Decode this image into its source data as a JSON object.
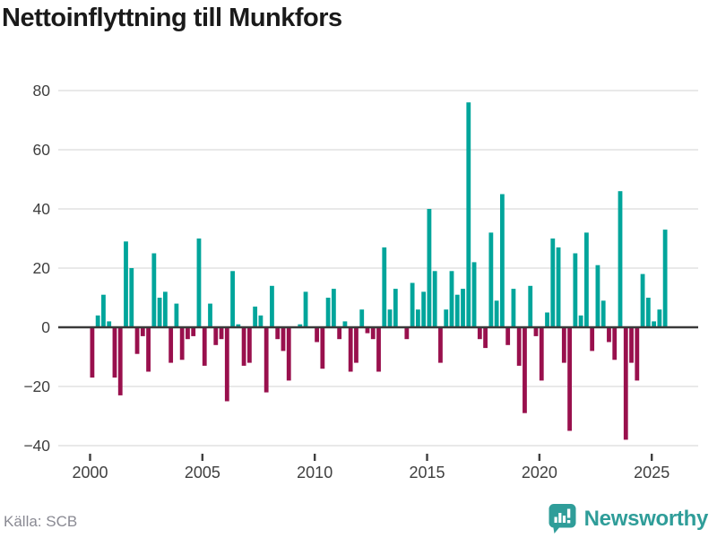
{
  "title": "Nettoinflyttning till Munkfors",
  "source": "Källa: SCB",
  "brand": {
    "name": "Newsworthy"
  },
  "colors": {
    "positive": "#00A59B",
    "negative": "#99104D",
    "brand_teal": "#2F9D99",
    "axis_line": "#3A3A3A",
    "grid_line": "#E2E2E2",
    "title_text": "#1A1A1A",
    "tick_text": "#3F3F3F",
    "source_text": "#8A8A93"
  },
  "chart_data": {
    "type": "bar",
    "title": "Nettoinflyttning till Munkfors",
    "xlabel": "",
    "ylabel": "",
    "frequency": "quarterly",
    "start_period": "2000Q1",
    "end_period": "2025Q3",
    "x_tick_labels": [
      "2000",
      "2005",
      "2010",
      "2015",
      "2020",
      "2025"
    ],
    "y_ticks": [
      80,
      60,
      40,
      20,
      0,
      -20,
      -40
    ],
    "y_tick_labels": [
      "80",
      "60",
      "40",
      "20",
      "0",
      "−20",
      "−40"
    ],
    "ylim": [
      -44,
      84
    ],
    "grid": "horizontal",
    "legend": "none",
    "values": [
      -17,
      4,
      11,
      2,
      -17,
      -23,
      29,
      20,
      -9,
      -3,
      -15,
      25,
      10,
      12,
      -12,
      8,
      -11,
      -4,
      -3,
      30,
      -13,
      8,
      -6,
      -4,
      -25,
      19,
      1,
      -13,
      -12,
      7,
      4,
      -22,
      14,
      -4,
      -8,
      -18,
      0,
      1,
      12,
      0,
      -5,
      -14,
      10,
      13,
      -4,
      2,
      -15,
      -12,
      6,
      -2,
      -4,
      -15,
      27,
      6,
      13,
      0,
      -4,
      15,
      6,
      12,
      40,
      19,
      -12,
      6,
      19,
      11,
      13,
      76,
      22,
      -4,
      -7,
      32,
      9,
      45,
      -6,
      13,
      -13,
      -29,
      14,
      -3,
      -18,
      5,
      30,
      27,
      -12,
      -35,
      25,
      4,
      32,
      -8,
      21,
      9,
      -5,
      -11,
      46,
      -38,
      -12,
      -18,
      18,
      10,
      2,
      6,
      33
    ]
  }
}
